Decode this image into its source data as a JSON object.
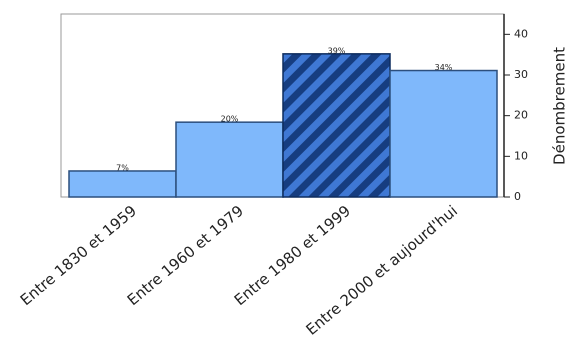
{
  "chart_data": {
    "type": "bar",
    "categories": [
      "Entre 1830 et 1959",
      "Entre 1960 et 1979",
      "Entre 1980 et 1999",
      "Entre 2000 et aujourd'hui"
    ],
    "values": [
      6.4,
      18.4,
      35.2,
      31.1
    ],
    "value_labels": [
      "7%",
      "20%",
      "39%",
      "34%"
    ],
    "color": "#7fb8fb",
    "highlight_color": "#1f4c9c",
    "highlight_index": 2,
    "y_label": "Dénombrement",
    "y_axis_side": "right",
    "ylim": [
      0,
      45
    ],
    "yticks": [
      0,
      10,
      20,
      30,
      40
    ],
    "grid": false
  }
}
